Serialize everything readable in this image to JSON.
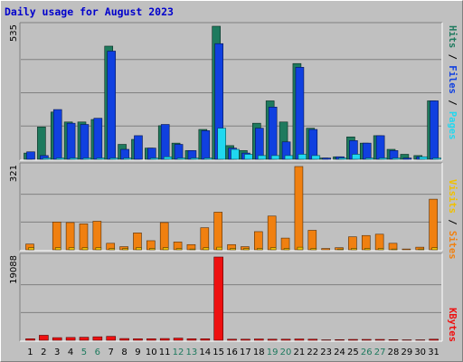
{
  "title": "Daily usage for August 2023",
  "colors": {
    "background": "#c0c0c0",
    "panel": "#c0c0c0",
    "hits": "#1e7a5e",
    "files": "#1040e0",
    "pages": "#20d8f0",
    "visits": "#f0c000",
    "sites": "#f08010",
    "kbytes": "#ee1010",
    "title": "#0000cc",
    "weekend_label": "#1e7a5e"
  },
  "chart_data": [
    {
      "type": "bar",
      "panel": "hits-files-pages",
      "categories": [
        "1",
        "2",
        "3",
        "4",
        "5",
        "6",
        "7",
        "8",
        "9",
        "10",
        "11",
        "12",
        "13",
        "14",
        "15",
        "16",
        "17",
        "18",
        "19",
        "20",
        "21",
        "22",
        "23",
        "24",
        "25",
        "26",
        "27",
        "28",
        "29",
        "30",
        "31"
      ],
      "max_label": "535",
      "ylim": [
        0,
        535
      ],
      "legend": {
        "labels": [
          "Pages",
          "Files",
          "Hits"
        ],
        "separator": "/"
      },
      "series": [
        {
          "name": "Hits",
          "values": [
            25,
            130,
            190,
            150,
            150,
            160,
            455,
            60,
            80,
            45,
            135,
            65,
            35,
            120,
            535,
            55,
            35,
            145,
            235,
            150,
            385,
            125,
            5,
            10,
            90,
            65,
            95,
            40,
            20,
            15,
            235
          ]
        },
        {
          "name": "Files",
          "values": [
            30,
            15,
            200,
            145,
            140,
            165,
            435,
            40,
            95,
            45,
            140,
            60,
            35,
            115,
            465,
            45,
            25,
            125,
            210,
            70,
            370,
            120,
            5,
            10,
            75,
            65,
            95,
            35,
            5,
            10,
            235
          ]
        },
        {
          "name": "Pages",
          "values": [
            0,
            5,
            5,
            5,
            5,
            5,
            5,
            5,
            0,
            5,
            10,
            5,
            5,
            5,
            125,
            40,
            20,
            15,
            15,
            15,
            20,
            15,
            0,
            5,
            20,
            5,
            5,
            5,
            0,
            10,
            5
          ]
        }
      ]
    },
    {
      "type": "bar",
      "panel": "visits-sites",
      "categories": [
        "1",
        "2",
        "3",
        "4",
        "5",
        "6",
        "7",
        "8",
        "9",
        "10",
        "11",
        "12",
        "13",
        "14",
        "15",
        "16",
        "17",
        "18",
        "19",
        "20",
        "21",
        "22",
        "23",
        "24",
        "25",
        "26",
        "27",
        "28",
        "29",
        "30",
        "31"
      ],
      "max_label": "321",
      "ylim": [
        0,
        321
      ],
      "legend": {
        "labels": [
          "Sites",
          "Visits"
        ],
        "separator": "/"
      },
      "series": [
        {
          "name": "Visits",
          "values": [
            8,
            0,
            8,
            8,
            8,
            8,
            5,
            5,
            8,
            5,
            8,
            5,
            3,
            8,
            10,
            5,
            5,
            5,
            8,
            5,
            10,
            5,
            0,
            3,
            5,
            5,
            5,
            3,
            0,
            3,
            8
          ]
        },
        {
          "name": "Sites",
          "values": [
            22,
            0,
            107,
            105,
            100,
            110,
            25,
            12,
            65,
            35,
            105,
            30,
            20,
            85,
            145,
            20,
            12,
            70,
            130,
            45,
            321,
            75,
            5,
            8,
            50,
            55,
            60,
            25,
            3,
            10,
            195
          ]
        }
      ]
    },
    {
      "type": "bar",
      "panel": "kbytes",
      "categories": [
        "1",
        "2",
        "3",
        "4",
        "5",
        "6",
        "7",
        "8",
        "9",
        "10",
        "11",
        "12",
        "13",
        "14",
        "15",
        "16",
        "17",
        "18",
        "19",
        "20",
        "21",
        "22",
        "23",
        "24",
        "25",
        "26",
        "27",
        "28",
        "29",
        "30",
        "31"
      ],
      "max_label": "19088",
      "ylim": [
        0,
        19088
      ],
      "legend": {
        "labels": [
          "KBytes"
        ],
        "separator": ""
      },
      "series": [
        {
          "name": "KBytes",
          "values": [
            350,
            1150,
            600,
            650,
            700,
            800,
            900,
            400,
            350,
            350,
            400,
            500,
            350,
            350,
            19088,
            250,
            250,
            300,
            250,
            250,
            300,
            250,
            100,
            150,
            200,
            200,
            200,
            150,
            100,
            100,
            250
          ]
        }
      ]
    }
  ],
  "day_labels": [
    {
      "text": "1",
      "weekend": false
    },
    {
      "text": "2",
      "weekend": false
    },
    {
      "text": "3",
      "weekend": false
    },
    {
      "text": "4",
      "weekend": false
    },
    {
      "text": "5",
      "weekend": true
    },
    {
      "text": "6",
      "weekend": true
    },
    {
      "text": "7",
      "weekend": false
    },
    {
      "text": "8",
      "weekend": false
    },
    {
      "text": "9",
      "weekend": false
    },
    {
      "text": "10",
      "weekend": false
    },
    {
      "text": "11",
      "weekend": false
    },
    {
      "text": "12",
      "weekend": true
    },
    {
      "text": "13",
      "weekend": true
    },
    {
      "text": "14",
      "weekend": false
    },
    {
      "text": "15",
      "weekend": false
    },
    {
      "text": "16",
      "weekend": false
    },
    {
      "text": "17",
      "weekend": false
    },
    {
      "text": "18",
      "weekend": false
    },
    {
      "text": "19",
      "weekend": true
    },
    {
      "text": "20",
      "weekend": true
    },
    {
      "text": "21",
      "weekend": false
    },
    {
      "text": "22",
      "weekend": false
    },
    {
      "text": "23",
      "weekend": false
    },
    {
      "text": "24",
      "weekend": false
    },
    {
      "text": "25",
      "weekend": false
    },
    {
      "text": "26",
      "weekend": true
    },
    {
      "text": "27",
      "weekend": true
    },
    {
      "text": "28",
      "weekend": false
    },
    {
      "text": "29",
      "weekend": false
    },
    {
      "text": "30",
      "weekend": false
    },
    {
      "text": "31",
      "weekend": false
    }
  ]
}
